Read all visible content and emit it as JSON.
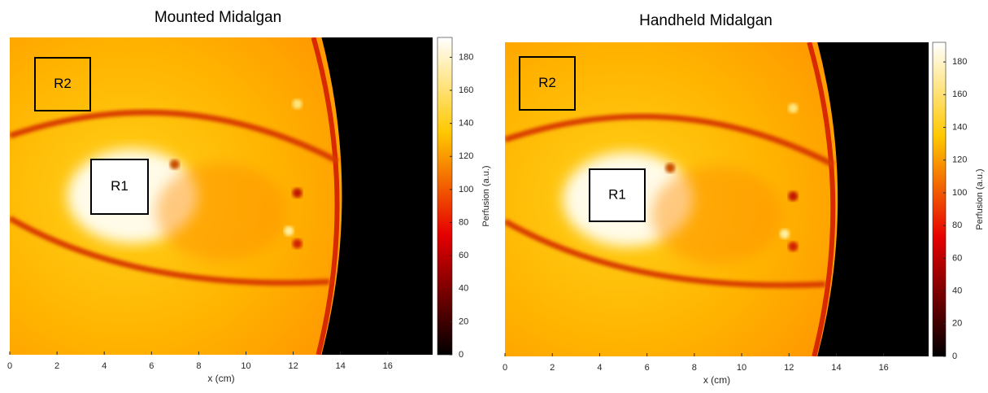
{
  "chart_data": [
    {
      "type": "heatmap",
      "title": "Mounted Midalgan",
      "xlabel": "x (cm)",
      "xlim": [
        0,
        17.9
      ],
      "xticks": [
        0,
        2,
        4,
        6,
        8,
        10,
        12,
        14,
        16
      ],
      "colormap": "hot",
      "colorbar": {
        "label": "Perfusion (a.u.)",
        "lim": [
          0,
          192
        ],
        "ticks": [
          0,
          20,
          40,
          60,
          80,
          100,
          120,
          140,
          160,
          180
        ]
      },
      "regions": [
        {
          "label": "R1"
        },
        {
          "label": "R2"
        }
      ]
    },
    {
      "type": "heatmap",
      "title": "Handheld Midalgan",
      "xlabel": "x (cm)",
      "xlim": [
        0,
        17.9
      ],
      "xticks": [
        0,
        2,
        4,
        6,
        8,
        10,
        12,
        14,
        16
      ],
      "colormap": "hot",
      "colorbar": {
        "label": "Perfusion (a.u.)",
        "lim": [
          0,
          192
        ],
        "ticks": [
          0,
          20,
          40,
          60,
          80,
          100,
          120,
          140,
          160,
          180
        ]
      },
      "regions": [
        {
          "label": "R1"
        },
        {
          "label": "R2"
        }
      ]
    }
  ]
}
